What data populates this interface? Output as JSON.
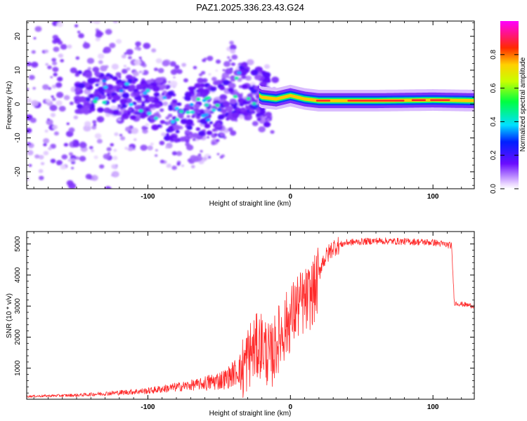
{
  "title": "PAZ1.2025.336.23.43.G24",
  "chart_data": [
    {
      "type": "heatmap",
      "name": "spectrogram",
      "xlabel": "Height of straight line (km)",
      "ylabel": "Frequency (Hz)",
      "xlim": [
        -185,
        129
      ],
      "ylim": [
        -25,
        24.5
      ],
      "xticks": [
        -100,
        0,
        100
      ],
      "xtick_labels": [
        "-100",
        "0",
        "100"
      ],
      "yticks": [
        20,
        10,
        0,
        -10,
        -20
      ],
      "ytick_labels": [
        "20",
        "10",
        "0",
        "-10",
        "-20"
      ],
      "colorbar": {
        "label": "Normalized spectral amplitude",
        "range": [
          0.0,
          1.0
        ],
        "ticks": [
          0.0,
          0.2,
          0.4,
          0.6,
          0.8
        ],
        "tick_labels": [
          "0.0",
          "0.2",
          "0.4",
          "0.6",
          "0.8"
        ]
      },
      "centerline": [
        {
          "x": -140,
          "y": 3.5
        },
        {
          "x": -120,
          "y": 2.5
        },
        {
          "x": -100,
          "y": 1.5
        },
        {
          "x": -90,
          "y": -1.5
        },
        {
          "x": -80,
          "y": -4
        },
        {
          "x": -70,
          "y": -3
        },
        {
          "x": -60,
          "y": -1
        },
        {
          "x": -50,
          "y": -3
        },
        {
          "x": -42,
          "y": 3
        },
        {
          "x": -35,
          "y": 6
        },
        {
          "x": -28,
          "y": 4
        },
        {
          "x": -20,
          "y": 2
        },
        {
          "x": -10,
          "y": 1.5
        },
        {
          "x": 0,
          "y": 2.5
        },
        {
          "x": 10,
          "y": 1.5
        },
        {
          "x": 20,
          "y": 1.0
        },
        {
          "x": 60,
          "y": 1.0
        },
        {
          "x": 100,
          "y": 1.2
        },
        {
          "x": 129,
          "y": 1.0
        }
      ]
    },
    {
      "type": "line",
      "name": "snr",
      "xlabel": "Height of straight line (km)",
      "ylabel": "SNR (10 * v/v)",
      "xlim": [
        -185,
        129
      ],
      "ylim": [
        0,
        5400
      ],
      "xticks": [
        -100,
        0,
        100
      ],
      "xtick_labels": [
        "-100",
        "0",
        "100"
      ],
      "yticks": [
        1000,
        2000,
        3000,
        4000,
        5000
      ],
      "ytick_labels": [
        "1000",
        "2000",
        "3000",
        "4000",
        "5000"
      ],
      "color": "#ff2a2a",
      "series_outline": [
        {
          "x": -185,
          "y": 80
        },
        {
          "x": -150,
          "y": 110
        },
        {
          "x": -120,
          "y": 180
        },
        {
          "x": -100,
          "y": 230
        },
        {
          "x": -80,
          "y": 330
        },
        {
          "x": -60,
          "y": 430
        },
        {
          "x": -45,
          "y": 560
        },
        {
          "x": -35,
          "y": 850
        },
        {
          "x": -28,
          "y": 1500
        },
        {
          "x": -20,
          "y": 1800
        },
        {
          "x": -14,
          "y": 1300
        },
        {
          "x": -8,
          "y": 2000
        },
        {
          "x": 0,
          "y": 2600
        },
        {
          "x": 5,
          "y": 3000
        },
        {
          "x": 12,
          "y": 3200
        },
        {
          "x": 18,
          "y": 3600
        },
        {
          "x": 22,
          "y": 4400
        },
        {
          "x": 30,
          "y": 4900
        },
        {
          "x": 40,
          "y": 5050
        },
        {
          "x": 60,
          "y": 5100
        },
        {
          "x": 80,
          "y": 5080
        },
        {
          "x": 100,
          "y": 5050
        },
        {
          "x": 113,
          "y": 4950
        },
        {
          "x": 115,
          "y": 3100
        },
        {
          "x": 129,
          "y": 3000
        }
      ]
    }
  ]
}
